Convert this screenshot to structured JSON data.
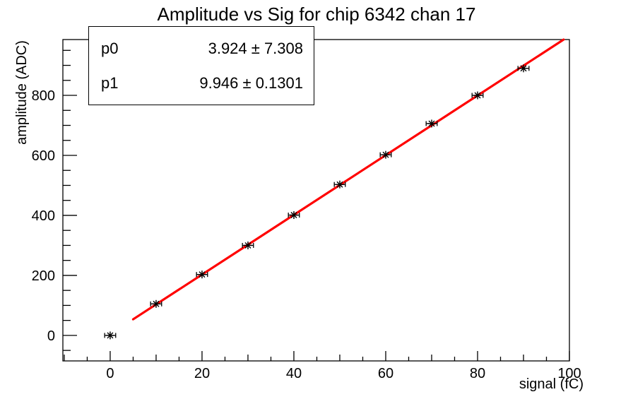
{
  "chart_data": {
    "type": "scatter",
    "title": "Amplitude vs Sig for chip 6342 chan 17",
    "xlabel": "signal (fC)",
    "ylabel": "amplitude (ADC)",
    "xlim": [
      -10.3,
      100
    ],
    "ylim": [
      -85,
      986
    ],
    "grid": false,
    "legend_position": "none",
    "marker": "star",
    "marker_color": "#000000",
    "x": [
      0,
      10,
      20,
      30,
      40,
      50,
      60,
      70,
      80,
      90
    ],
    "y": [
      0,
      105,
      203,
      300,
      401,
      503,
      602,
      706,
      800,
      890
    ],
    "xerr": 1.2,
    "x_ticks": {
      "major": [
        0,
        20,
        40,
        60,
        80,
        100
      ],
      "medium": [
        -10,
        10,
        30,
        50,
        70,
        90
      ],
      "minor": [
        -5,
        5,
        15,
        25,
        35,
        45,
        55,
        65,
        75,
        85,
        95
      ],
      "labels": [
        "0",
        "20",
        "40",
        "60",
        "80",
        "100"
      ]
    },
    "y_ticks": {
      "major": [
        0,
        200,
        400,
        600,
        800
      ],
      "minor": [
        -50,
        50,
        100,
        150,
        250,
        300,
        350,
        450,
        500,
        550,
        650,
        700,
        750,
        850,
        900,
        950
      ],
      "labels": [
        "0",
        "200",
        "400",
        "600",
        "800"
      ]
    },
    "fit": {
      "p0": 3.924,
      "p1": 9.946,
      "x_draw_min": 5,
      "color": "#ff0000"
    }
  },
  "stats_box": {
    "rows": [
      {
        "label": "p0",
        "value": "3.924 ± 7.308"
      },
      {
        "label": "p1",
        "value": "9.946 ± 0.1301"
      }
    ]
  }
}
